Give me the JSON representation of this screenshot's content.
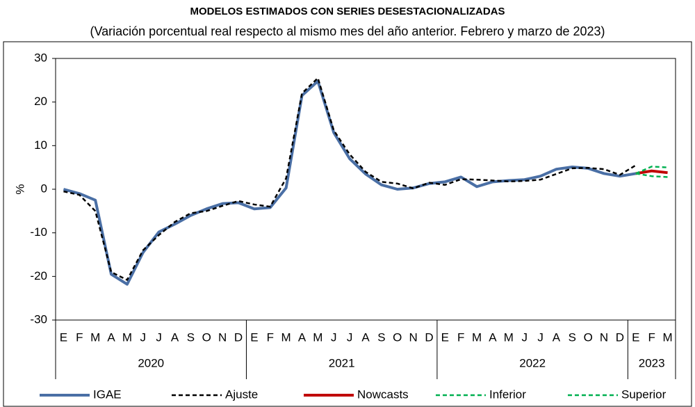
{
  "chart_data": {
    "type": "line",
    "title": "MODELOS ESTIMADOS CON SERIES DESESTACIONALIZADAS",
    "subtitle": "(Variación porcentual real respecto al mismo mes del año anterior. Febrero y marzo de 2023)",
    "ylabel": "%",
    "categories": [
      "E",
      "F",
      "M",
      "A",
      "M",
      "J",
      "J",
      "A",
      "S",
      "O",
      "N",
      "D",
      "E",
      "F",
      "M",
      "A",
      "M",
      "J",
      "J",
      "A",
      "S",
      "O",
      "N",
      "D",
      "E",
      "F",
      "M",
      "A",
      "M",
      "J",
      "J",
      "A",
      "S",
      "O",
      "N",
      "D",
      "E",
      "F",
      "M"
    ],
    "groups": [
      {
        "label": "2020",
        "count": 12
      },
      {
        "label": "2021",
        "count": 12
      },
      {
        "label": "2022",
        "count": 12
      },
      {
        "label": "2023",
        "count": 3
      }
    ],
    "ylim": [
      -30,
      30
    ],
    "yticks": [
      -30,
      -20,
      -10,
      0,
      10,
      20,
      30
    ],
    "grid": false,
    "series": [
      {
        "name": "IGAE",
        "color": "#4a6fa5",
        "style": "solid",
        "values": [
          0,
          -1,
          -2.5,
          -19.5,
          -21.8,
          -14.5,
          -9.8,
          -8,
          -6,
          -4.5,
          -3.3,
          -3.1,
          -4.5,
          -4.2,
          0.3,
          21.5,
          24.8,
          13,
          7,
          3.5,
          1,
          0,
          0.3,
          1.3,
          1.7,
          2.8,
          0.6,
          1.7,
          2.0,
          2.2,
          3.0,
          4.6,
          5.1,
          4.8,
          3.6,
          3.0,
          3.6,
          null,
          null
        ]
      },
      {
        "name": "Ajuste",
        "color": "#000000",
        "style": "dashed",
        "values": [
          -0.5,
          -1.3,
          -5,
          -19,
          -20.8,
          -14,
          -10.5,
          -7.5,
          -5.5,
          -5,
          -3.8,
          -2.7,
          -3.5,
          -4,
          2.5,
          22,
          25.5,
          13.5,
          8,
          4,
          1.7,
          1.3,
          0.2,
          1.5,
          1,
          2.3,
          2.2,
          2.0,
          1.8,
          1.9,
          2.2,
          3.5,
          4.8,
          4.9,
          4.6,
          3.3,
          5.5,
          null,
          null
        ]
      },
      {
        "name": "Nowcasts",
        "color": "#c00000",
        "style": "solid",
        "values": [
          null,
          null,
          null,
          null,
          null,
          null,
          null,
          null,
          null,
          null,
          null,
          null,
          null,
          null,
          null,
          null,
          null,
          null,
          null,
          null,
          null,
          null,
          null,
          null,
          null,
          null,
          null,
          null,
          null,
          null,
          null,
          null,
          null,
          null,
          null,
          null,
          3.6,
          4.2,
          3.8
        ]
      },
      {
        "name": "Inferior",
        "color": "#00b050",
        "style": "dashed",
        "values": [
          null,
          null,
          null,
          null,
          null,
          null,
          null,
          null,
          null,
          null,
          null,
          null,
          null,
          null,
          null,
          null,
          null,
          null,
          null,
          null,
          null,
          null,
          null,
          null,
          null,
          null,
          null,
          null,
          null,
          null,
          null,
          null,
          null,
          null,
          null,
          null,
          3.6,
          3.0,
          2.8
        ]
      },
      {
        "name": "Superior",
        "color": "#00b050",
        "style": "dashed",
        "values": [
          null,
          null,
          null,
          null,
          null,
          null,
          null,
          null,
          null,
          null,
          null,
          null,
          null,
          null,
          null,
          null,
          null,
          null,
          null,
          null,
          null,
          null,
          null,
          null,
          null,
          null,
          null,
          null,
          null,
          null,
          null,
          null,
          null,
          null,
          null,
          null,
          3.6,
          5.2,
          5.0
        ]
      }
    ],
    "legend": "bottom"
  }
}
